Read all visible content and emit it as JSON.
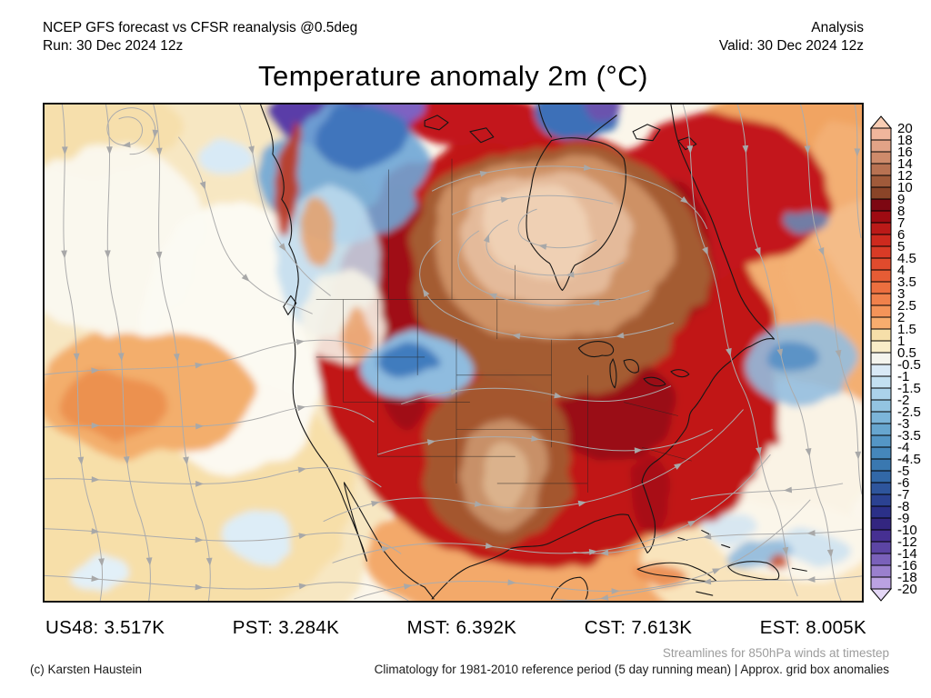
{
  "header": {
    "product": "NCEP GFS forecast vs CFSR reanalysis @0.5deg",
    "run": "Run: 30 Dec 2024 12z",
    "mode": "Analysis",
    "valid": "Valid: 30 Dec 2024 12z"
  },
  "title": "Temperature anomaly 2m (°C)",
  "colorbar": {
    "labels": [
      "20",
      "18",
      "16",
      "14",
      "12",
      "10",
      "9",
      "8",
      "7",
      "6",
      "5",
      "4.5",
      "4",
      "3.5",
      "3",
      "2.5",
      "2",
      "1.5",
      "1",
      "0.5",
      "-0.5",
      "-1",
      "-1.5",
      "-2",
      "-2.5",
      "-3",
      "-3.5",
      "-4",
      "-4.5",
      "-5",
      "-6",
      "-7",
      "-8",
      "-9",
      "-10",
      "-12",
      "-14",
      "-16",
      "-18",
      "-20"
    ],
    "colors": [
      "#F8CDB4",
      "#F0B69C",
      "#E2A387",
      "#CE8B6B",
      "#B87252",
      "#A05A3A",
      "#8A4428",
      "#7D0712",
      "#9E0B12",
      "#BB1A18",
      "#CE2A1E",
      "#D93B26",
      "#E04B2D",
      "#E65C35",
      "#EC6F3F",
      "#F0814B",
      "#F49459",
      "#F7AD6E",
      "#F6DFA9",
      "#F8ECC8",
      "#F4F4EE",
      "#D9E9F6",
      "#C3E0F1",
      "#ABD2EA",
      "#93C4E1",
      "#7CB5D9",
      "#67A6CF",
      "#5496C5",
      "#4587BB",
      "#3A78B0",
      "#3268A7",
      "#2E559C",
      "#2B4292",
      "#2B3088",
      "#332680",
      "#463092",
      "#5C45A4",
      "#7A61BA",
      "#9A80CE",
      "#BBA2E2",
      "#E4D7F6"
    ]
  },
  "stats": [
    {
      "label": "US48",
      "value": "3.517K"
    },
    {
      "label": "PST",
      "value": "3.284K"
    },
    {
      "label": "MST",
      "value": "6.392K"
    },
    {
      "label": "CST",
      "value": "7.613K"
    },
    {
      "label": "EST",
      "value": "8.005K"
    }
  ],
  "footer": {
    "streamlines_note": "Streamlines for 850hPa winds at timestep",
    "credit": "(c) Karsten Haustein",
    "climatology_note": "Climatology for 1981-2010 reference period (5 day running mean) | Approx. grid box anomalies"
  }
}
